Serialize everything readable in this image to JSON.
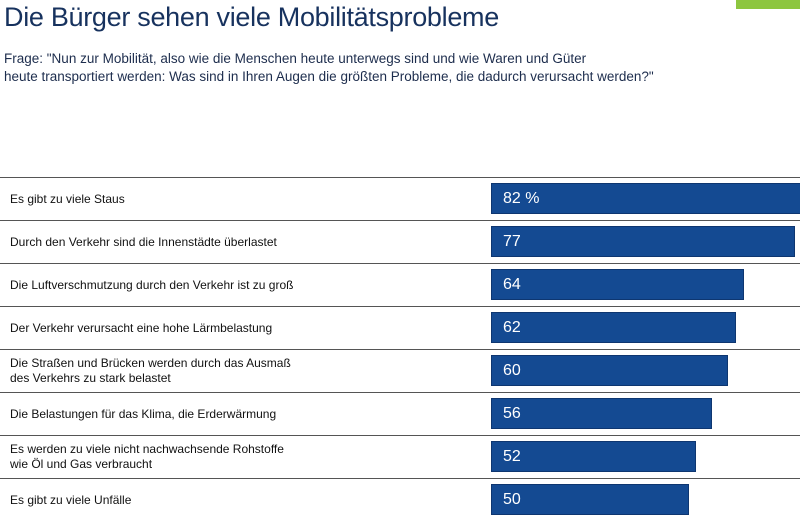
{
  "accent_color": "#8dc63f",
  "bar_color": "#144a92",
  "title": "Die Bürger sehen viele Mobilitätsprobleme",
  "question_line1": "Frage: \"Nun zur Mobilität, also wie die Menschen heute unterwegs sind und wie Waren und Güter",
  "question_line2": "heute transportiert werden: Was sind in Ihren Augen die größten Probleme, die dadurch verursacht werden?\"",
  "chart_data": {
    "type": "bar",
    "orientation": "horizontal",
    "unit": "%",
    "xlim": [
      0,
      82
    ],
    "categories": [
      [
        "Es gibt zu viele Staus"
      ],
      [
        "Durch den Verkehr sind die Innenstädte überlastet"
      ],
      [
        "Die Luftverschmutzung durch den Verkehr ist zu groß"
      ],
      [
        "Der Verkehr verursacht eine hohe Lärmbelastung"
      ],
      [
        "Die Straßen und Brücken werden durch das Ausmaß",
        "des Verkehrs zu stark belastet"
      ],
      [
        "Die Belastungen für das Klima, die Erderwärmung"
      ],
      [
        "Es werden zu viele nicht nachwachsende Rohstoffe",
        "wie Öl und Gas verbraucht"
      ],
      [
        "Es gibt zu viele Unfälle"
      ]
    ],
    "values": [
      82,
      77,
      64,
      62,
      60,
      56,
      52,
      50
    ],
    "value_labels": [
      "82 %",
      "77",
      "64",
      "62",
      "60",
      "56",
      "52",
      "50"
    ]
  }
}
